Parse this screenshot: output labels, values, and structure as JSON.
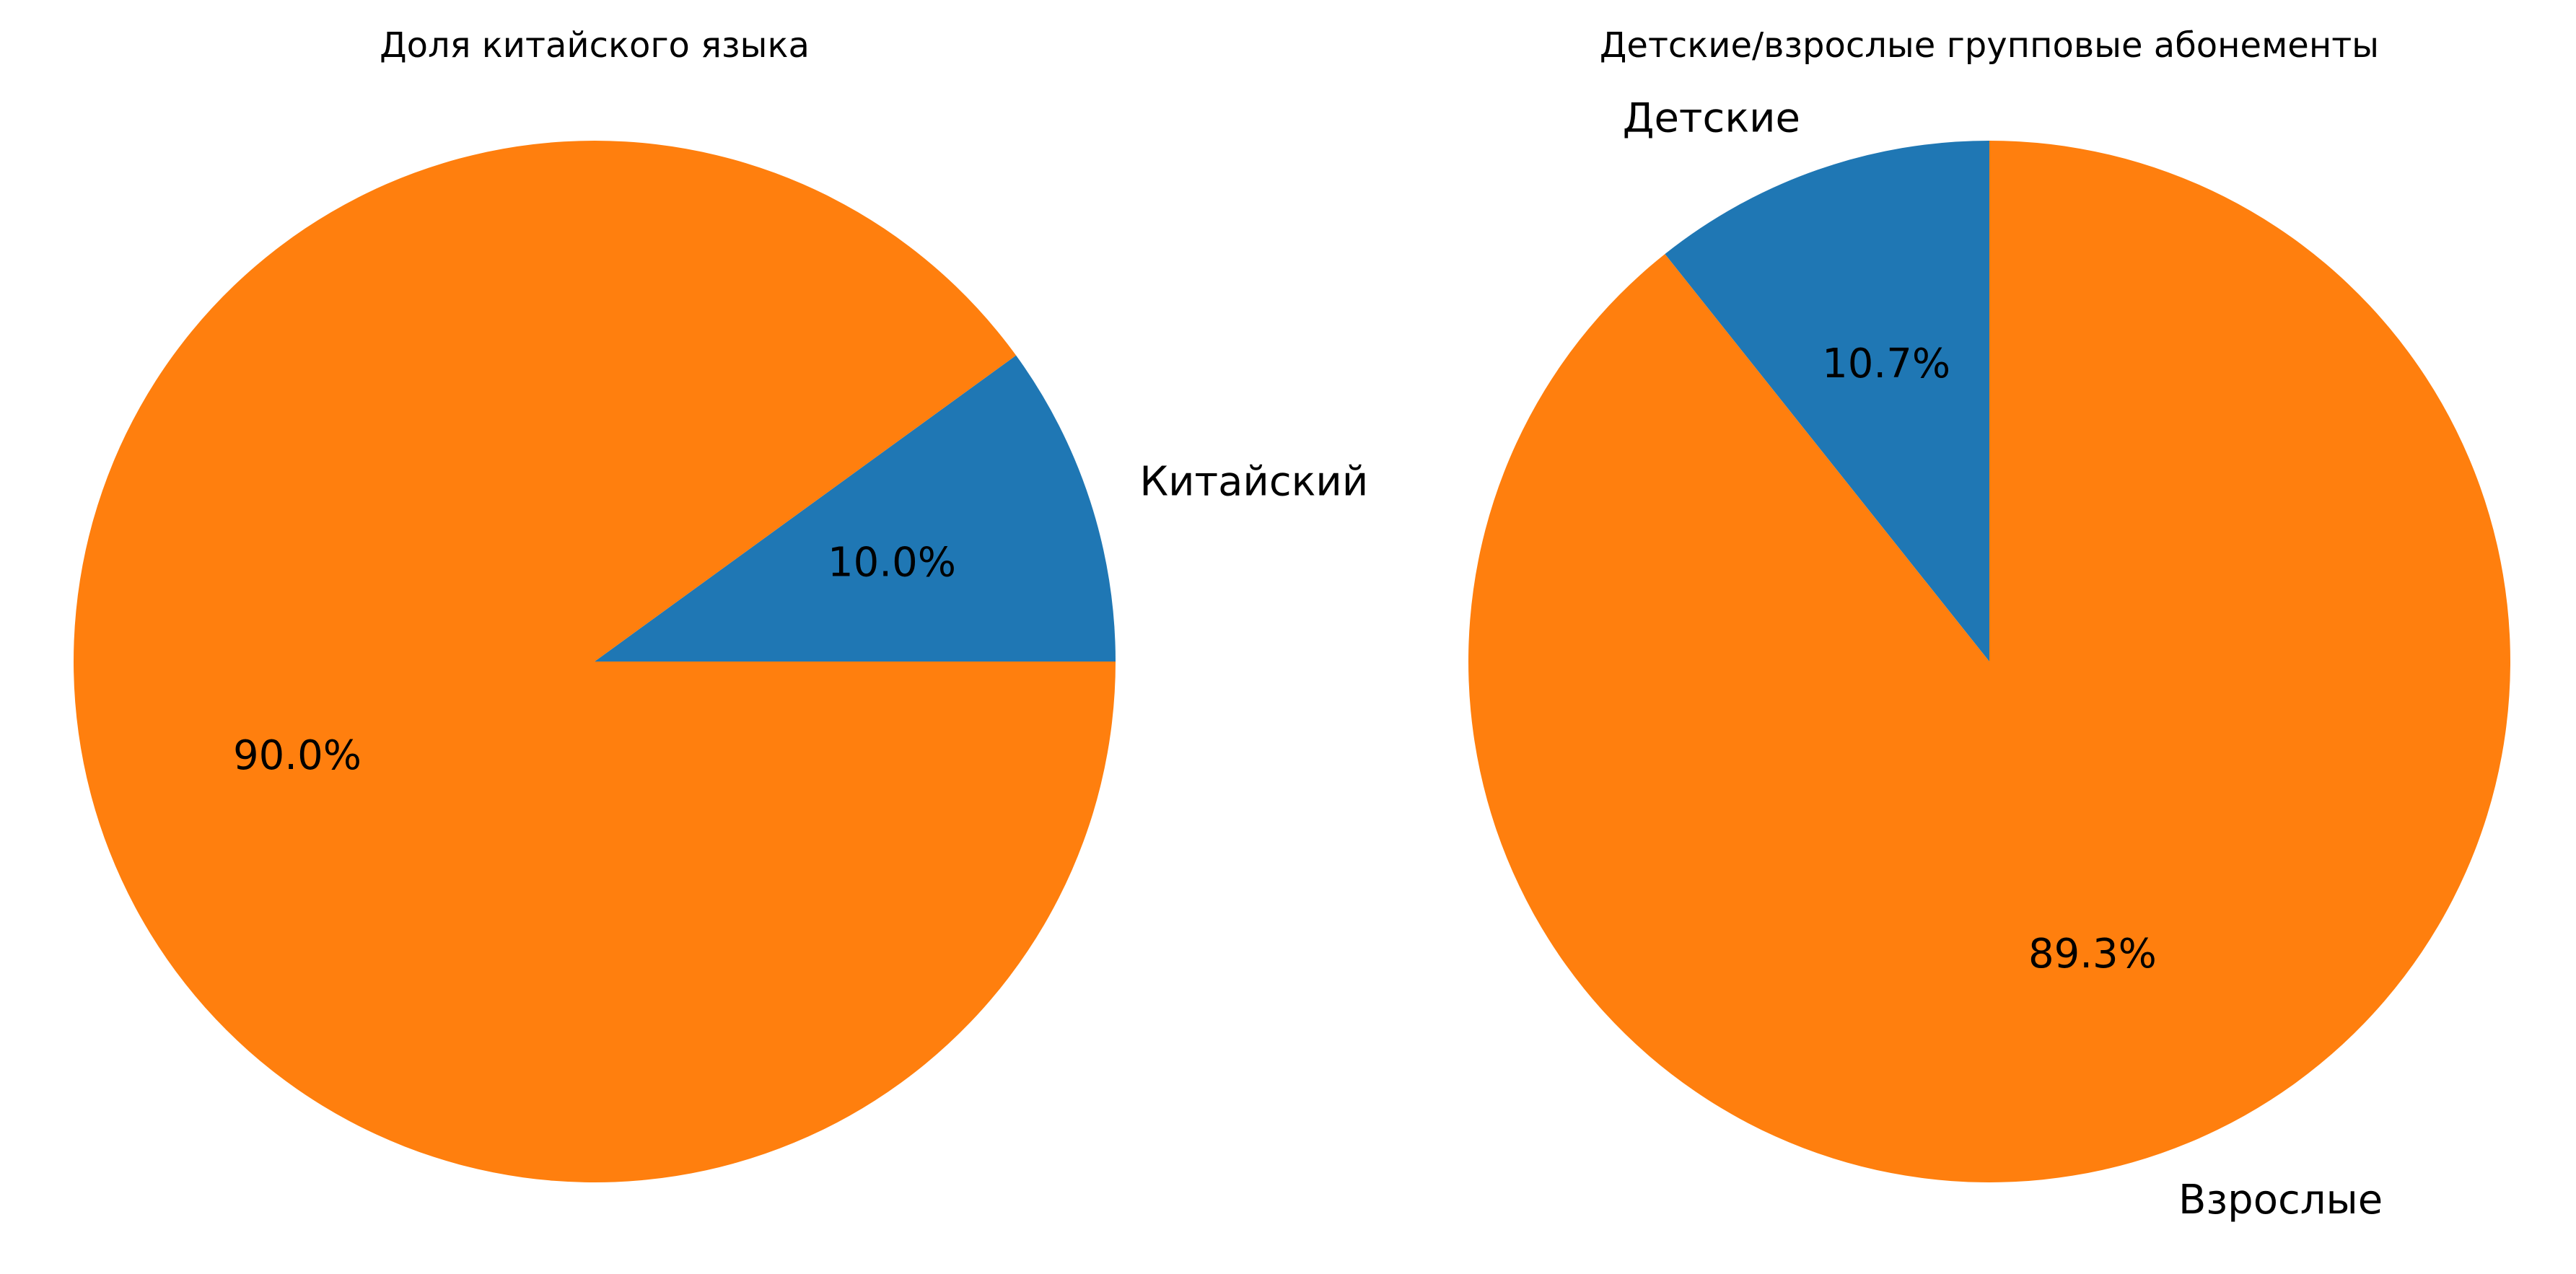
{
  "chart_data": [
    {
      "type": "pie",
      "title": "Доля китайского языка",
      "start_angle_deg": 0,
      "direction": "counterclockwise",
      "slices": [
        {
          "label": "Китайский",
          "value": 10.0,
          "pct_label": "10.0%",
          "color": "#1f77b4"
        },
        {
          "label": "",
          "value": 90.0,
          "pct_label": "90.0%",
          "color": "#ff7f0e"
        }
      ]
    },
    {
      "type": "pie",
      "title": "Детские/взрослые групповые абонементы",
      "start_angle_deg": 90,
      "direction": "counterclockwise",
      "slices": [
        {
          "label": "Детские",
          "value": 10.7,
          "pct_label": "10.7%",
          "color": "#1f77b4"
        },
        {
          "label": "Взрослые",
          "value": 89.3,
          "pct_label": "89.3%",
          "color": "#ff7f0e"
        }
      ]
    }
  ]
}
